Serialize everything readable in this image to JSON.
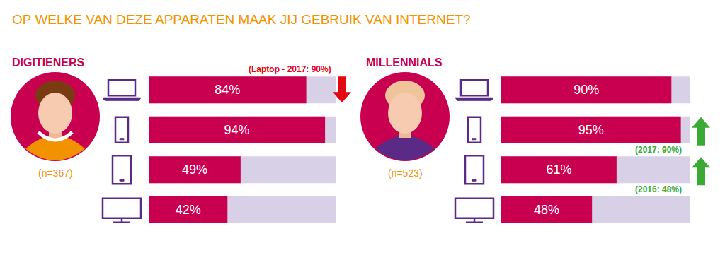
{
  "title": "OP WELKE VAN DEZE APPARATEN MAAK JIJ GEBRUIK VAN INTERNET?",
  "chart_data": [
    {
      "type": "bar",
      "title": "DIGITIENERS",
      "subtitle": "(n=367)",
      "orientation": "horizontal",
      "categories": [
        null,
        null,
        null,
        null
      ],
      "values": [
        84,
        94,
        49,
        42
      ],
      "value_labels": [
        "84%",
        "94%",
        "49%",
        "42%"
      ],
      "data_labels": true,
      "color": "#c8004f",
      "xlim": [
        0,
        100
      ],
      "tick_labels": false,
      "annotations": [
        {
          "text": "(Laptop - 2017: 90%)",
          "category": 0,
          "color": "#e30613",
          "marker": "arrow-down"
        }
      ]
    },
    {
      "type": "bar",
      "title": "MILLENNIALS",
      "subtitle": "(n=523)",
      "orientation": "horizontal",
      "categories": [
        null,
        null,
        null,
        null
      ],
      "values": [
        90,
        95,
        61,
        48
      ],
      "value_labels": [
        "90%",
        "95%",
        "61%",
        "48%"
      ],
      "data_labels": true,
      "color": "#c8004f",
      "xlim": [
        0,
        100
      ],
      "tick_labels": false,
      "annotations": [
        {
          "text": "(2017: 90%)",
          "category": 1,
          "color": "#3aaa35",
          "marker": "arrow-up"
        },
        {
          "text": "(2016: 48%)",
          "category": 2,
          "color": "#3aaa35",
          "marker": "arrow-up"
        }
      ]
    }
  ]
}
